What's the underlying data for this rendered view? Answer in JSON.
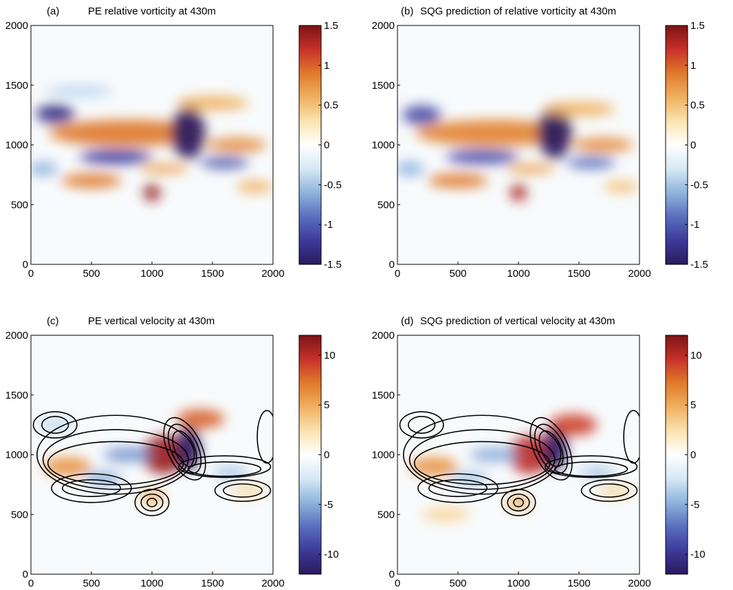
{
  "colors": {
    "cmap": [
      "#2a1a5e",
      "#3d3a9a",
      "#5a6fbd",
      "#8eb4dc",
      "#d6e8f5",
      "#ffffff",
      "#fbe3b0",
      "#f0b060",
      "#e07a2a",
      "#c8302a",
      "#7a1414"
    ],
    "contour": "#000000",
    "axis": "#000000"
  },
  "chart_data": [
    {
      "type": "heatmap",
      "letter": "(a)",
      "title": "PE relative vorticity at 430m",
      "xlim": [
        0,
        2000
      ],
      "ylim": [
        0,
        2000
      ],
      "xticks": [
        "0",
        "500",
        "1000",
        "1500",
        "2000"
      ],
      "yticks": [
        "0",
        "500",
        "1000",
        "1500",
        "2000"
      ],
      "colorbar": {
        "range": [
          -1.5,
          1.5
        ],
        "ticks": [
          "1.5",
          "1",
          "0.5",
          "0",
          "-0.5",
          "-1",
          "-1.5"
        ]
      },
      "contours": false,
      "features": [
        {
          "x": 800,
          "y": 1100,
          "rx": 650,
          "ry": 110,
          "v": 0.9
        },
        {
          "x": 200,
          "y": 1260,
          "rx": 160,
          "ry": 80,
          "v": -1.3
        },
        {
          "x": 1300,
          "y": 1100,
          "rx": 140,
          "ry": 220,
          "v": -1.5
        },
        {
          "x": 1000,
          "y": 600,
          "rx": 70,
          "ry": 70,
          "v": 1.4
        },
        {
          "x": 700,
          "y": 900,
          "rx": 300,
          "ry": 60,
          "v": -1.2
        },
        {
          "x": 500,
          "y": 700,
          "rx": 250,
          "ry": 60,
          "v": 0.9
        },
        {
          "x": 1600,
          "y": 850,
          "rx": 200,
          "ry": 50,
          "v": -1.0
        },
        {
          "x": 1500,
          "y": 1350,
          "rx": 300,
          "ry": 60,
          "v": 0.6
        },
        {
          "x": 400,
          "y": 1450,
          "rx": 280,
          "ry": 50,
          "v": -0.4
        },
        {
          "x": 1100,
          "y": 800,
          "rx": 200,
          "ry": 40,
          "v": 0.7
        },
        {
          "x": 1700,
          "y": 1000,
          "rx": 250,
          "ry": 60,
          "v": 0.8
        },
        {
          "x": 100,
          "y": 800,
          "rx": 120,
          "ry": 60,
          "v": -0.6
        },
        {
          "x": 1850,
          "y": 650,
          "rx": 150,
          "ry": 50,
          "v": 0.6
        }
      ]
    },
    {
      "type": "heatmap",
      "letter": "(b)",
      "title": "SQG prediction of relative vorticity at 430m",
      "xlim": [
        0,
        2000
      ],
      "ylim": [
        0,
        2000
      ],
      "xticks": [
        "0",
        "500",
        "1000",
        "1500",
        "2000"
      ],
      "yticks": [
        "0",
        "500",
        "1000",
        "1500",
        "2000"
      ],
      "colorbar": {
        "range": [
          -1.5,
          1.5
        ],
        "ticks": [
          "1.5",
          "1",
          "0.5",
          "0",
          "-0.5",
          "-1",
          "-1.5"
        ]
      },
      "contours": false,
      "features": [
        {
          "x": 800,
          "y": 1100,
          "rx": 650,
          "ry": 110,
          "v": 0.85
        },
        {
          "x": 200,
          "y": 1250,
          "rx": 160,
          "ry": 80,
          "v": -1.1
        },
        {
          "x": 1300,
          "y": 1100,
          "rx": 140,
          "ry": 220,
          "v": -1.5
        },
        {
          "x": 1000,
          "y": 600,
          "rx": 70,
          "ry": 70,
          "v": 1.3
        },
        {
          "x": 700,
          "y": 900,
          "rx": 300,
          "ry": 60,
          "v": -1.1
        },
        {
          "x": 500,
          "y": 700,
          "rx": 250,
          "ry": 60,
          "v": 0.9
        },
        {
          "x": 1600,
          "y": 850,
          "rx": 200,
          "ry": 50,
          "v": -0.9
        },
        {
          "x": 1500,
          "y": 1300,
          "rx": 300,
          "ry": 60,
          "v": 0.6
        },
        {
          "x": 1100,
          "y": 800,
          "rx": 200,
          "ry": 40,
          "v": 0.7
        },
        {
          "x": 1700,
          "y": 1000,
          "rx": 250,
          "ry": 60,
          "v": 0.8
        },
        {
          "x": 100,
          "y": 800,
          "rx": 120,
          "ry": 60,
          "v": -0.6
        },
        {
          "x": 1850,
          "y": 650,
          "rx": 150,
          "ry": 50,
          "v": 0.5
        }
      ]
    },
    {
      "type": "heatmap",
      "letter": "(c)",
      "title": "PE vertical velocity at 430m",
      "xlim": [
        0,
        2000
      ],
      "ylim": [
        0,
        2000
      ],
      "xticks": [
        "0",
        "500",
        "1000",
        "1500",
        "2000"
      ],
      "yticks": [
        "0",
        "500",
        "1000",
        "1500",
        "2000"
      ],
      "colorbar": {
        "range": [
          -12,
          12
        ],
        "ticks": [
          "10",
          "5",
          "0",
          "-5",
          "-10"
        ],
        "tickvals": [
          10,
          5,
          0,
          -5,
          -10
        ]
      },
      "contours": true,
      "features": [
        {
          "x": 1100,
          "y": 1000,
          "rx": 180,
          "ry": 160,
          "v": 11
        },
        {
          "x": 1300,
          "y": 1050,
          "rx": 100,
          "ry": 180,
          "v": -12
        },
        {
          "x": 1400,
          "y": 1300,
          "rx": 200,
          "ry": 80,
          "v": 8
        },
        {
          "x": 800,
          "y": 1000,
          "rx": 200,
          "ry": 60,
          "v": -6
        },
        {
          "x": 300,
          "y": 900,
          "rx": 200,
          "ry": 80,
          "v": 6
        },
        {
          "x": 600,
          "y": 800,
          "rx": 150,
          "ry": 60,
          "v": -5
        },
        {
          "x": 1000,
          "y": 650,
          "rx": 100,
          "ry": 60,
          "v": 5
        },
        {
          "x": 1650,
          "y": 850,
          "rx": 150,
          "ry": 50,
          "v": -4
        },
        {
          "x": 200,
          "y": 1250,
          "rx": 150,
          "ry": 60,
          "v": -3
        },
        {
          "x": 1800,
          "y": 700,
          "rx": 150,
          "ry": 50,
          "v": 3
        }
      ]
    },
    {
      "type": "heatmap",
      "letter": "(d)",
      "title": "SQG prediction of vertical velocity at 430m",
      "xlim": [
        0,
        2000
      ],
      "ylim": [
        0,
        2000
      ],
      "xticks": [
        "0",
        "500",
        "1000",
        "1500",
        "2000"
      ],
      "yticks": [
        "0",
        "500",
        "1000",
        "1500",
        "2000"
      ],
      "colorbar": {
        "range": [
          -12,
          12
        ],
        "ticks": [
          "10",
          "5",
          "0",
          "-5",
          "-10"
        ],
        "tickvals": [
          10,
          5,
          0,
          -5,
          -10
        ]
      },
      "contours": true,
      "features": [
        {
          "x": 1100,
          "y": 1000,
          "rx": 180,
          "ry": 160,
          "v": 10
        },
        {
          "x": 1300,
          "y": 1050,
          "rx": 100,
          "ry": 180,
          "v": -12
        },
        {
          "x": 1450,
          "y": 1250,
          "rx": 200,
          "ry": 90,
          "v": 9
        },
        {
          "x": 800,
          "y": 1000,
          "rx": 200,
          "ry": 60,
          "v": -5
        },
        {
          "x": 300,
          "y": 900,
          "rx": 200,
          "ry": 80,
          "v": 6
        },
        {
          "x": 600,
          "y": 800,
          "rx": 150,
          "ry": 60,
          "v": -4
        },
        {
          "x": 1000,
          "y": 600,
          "rx": 100,
          "ry": 60,
          "v": 5
        },
        {
          "x": 1650,
          "y": 850,
          "rx": 150,
          "ry": 50,
          "v": -4
        },
        {
          "x": 400,
          "y": 500,
          "rx": 200,
          "ry": 60,
          "v": 3
        },
        {
          "x": 1800,
          "y": 700,
          "rx": 150,
          "ry": 50,
          "v": 3
        }
      ]
    }
  ],
  "contour_paths": [
    {
      "x": 700,
      "y": 1000,
      "rx": 650,
      "ry": 330,
      "r": 0
    },
    {
      "x": 700,
      "y": 960,
      "rx": 600,
      "ry": 250,
      "r": 0
    },
    {
      "x": 700,
      "y": 930,
      "rx": 560,
      "ry": 180,
      "r": 0
    },
    {
      "x": 200,
      "y": 1250,
      "rx": 180,
      "ry": 110,
      "r": 0
    },
    {
      "x": 200,
      "y": 1250,
      "rx": 110,
      "ry": 70,
      "r": 0
    },
    {
      "x": 1270,
      "y": 1050,
      "rx": 140,
      "ry": 280,
      "r": -25
    },
    {
      "x": 1270,
      "y": 1050,
      "rx": 110,
      "ry": 220,
      "r": -25
    },
    {
      "x": 1270,
      "y": 1050,
      "rx": 80,
      "ry": 160,
      "r": -25
    },
    {
      "x": 1000,
      "y": 600,
      "rx": 140,
      "ry": 110,
      "r": 0
    },
    {
      "x": 1000,
      "y": 600,
      "rx": 90,
      "ry": 70,
      "r": 0
    },
    {
      "x": 1000,
      "y": 600,
      "rx": 40,
      "ry": 35,
      "r": 0
    },
    {
      "x": 1600,
      "y": 900,
      "rx": 380,
      "ry": 90,
      "r": 0
    },
    {
      "x": 1600,
      "y": 880,
      "rx": 300,
      "ry": 60,
      "r": 0
    },
    {
      "x": 1750,
      "y": 700,
      "rx": 230,
      "ry": 90,
      "r": 0
    },
    {
      "x": 1750,
      "y": 700,
      "rx": 160,
      "ry": 55,
      "r": 0
    },
    {
      "x": 500,
      "y": 720,
      "rx": 330,
      "ry": 120,
      "r": 0
    },
    {
      "x": 500,
      "y": 720,
      "rx": 240,
      "ry": 70,
      "r": 0
    },
    {
      "x": 1950,
      "y": 1150,
      "rx": 80,
      "ry": 220,
      "r": 0
    }
  ]
}
